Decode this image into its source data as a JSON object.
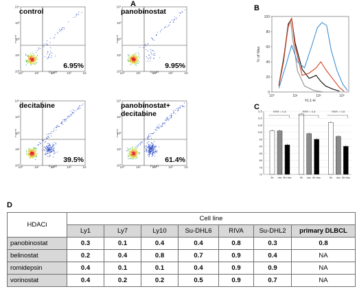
{
  "panels": {
    "a": "A",
    "b": "B",
    "c": "C",
    "d": "D"
  },
  "flow_plots": [
    {
      "condition": "control",
      "percent": "6.95%"
    },
    {
      "condition": "panobinostat",
      "percent": "9.95%"
    },
    {
      "condition": "decitabine",
      "percent": "39.5%"
    },
    {
      "condition": "panobinostat+\ndecitabine",
      "percent": "61.4%"
    }
  ],
  "flow_axis": {
    "x_label": "FL1-H",
    "y_label": "FL3-H",
    "ticks": [
      "10⁰",
      "10¹",
      "10²",
      "10³",
      "10⁴"
    ]
  },
  "colors": {
    "grey_line": "#8c8c8c",
    "black_line": "#000000",
    "red_line": "#d2401f",
    "blue_line": "#3c8fd4",
    "bar_white": "#ffffff",
    "bar_grey": "#8a8a8a",
    "bar_black": "#000000",
    "header_fill": "#d8d8d8"
  },
  "chart_data": [
    {
      "type": "line",
      "panel": "B",
      "xlabel": "FL1-H",
      "ylabel": "% of Max",
      "x_ticks": [
        "10⁰",
        "10¹",
        "10²",
        "10³"
      ],
      "y_ticks": [
        "0",
        "20",
        "40",
        "60",
        "80",
        "100"
      ],
      "ylim": [
        0,
        100
      ],
      "x_log_range": [
        0,
        3.3
      ],
      "series": [
        {
          "color": "#8c8c8c",
          "x": [
            0.3,
            0.5,
            0.7,
            0.8,
            0.9,
            1.1,
            1.4,
            1.8,
            2.2
          ],
          "y": [
            10,
            45,
            85,
            95,
            70,
            28,
            8,
            2,
            0
          ]
        },
        {
          "color": "#000000",
          "x": [
            0.3,
            0.5,
            0.7,
            0.85,
            1.0,
            1.3,
            1.6,
            1.9,
            2.1,
            2.3,
            2.6,
            2.9
          ],
          "y": [
            8,
            42,
            90,
            97,
            65,
            30,
            18,
            22,
            14,
            8,
            4,
            1
          ]
        },
        {
          "color": "#d2401f",
          "x": [
            0.3,
            0.5,
            0.7,
            0.85,
            1.0,
            1.3,
            1.6,
            1.9,
            2.1,
            2.3,
            2.6,
            2.9,
            3.1
          ],
          "y": [
            8,
            40,
            88,
            98,
            60,
            22,
            25,
            32,
            40,
            30,
            18,
            6,
            1
          ]
        },
        {
          "color": "#3c8fd4",
          "x": [
            0.3,
            0.6,
            0.85,
            1.1,
            1.4,
            1.7,
            1.95,
            2.15,
            2.35,
            2.55,
            2.8,
            3.05,
            3.25
          ],
          "y": [
            5,
            35,
            62,
            40,
            32,
            60,
            85,
            92,
            88,
            55,
            28,
            10,
            2
          ]
        }
      ]
    },
    {
      "type": "bar",
      "panel": "C",
      "groups": 3,
      "categories": [
        "8h",
        "dac",
        "8h+dac",
        "8h",
        "dac",
        "8h+dac",
        "8h",
        "dac",
        "8h+dac"
      ],
      "series_colors": [
        "#ffffff",
        "#8a8a8a",
        "#000000"
      ],
      "y_ticks": [
        "70",
        "75",
        "80",
        "85",
        "90",
        "95",
        "100",
        "105",
        "110",
        "115"
      ],
      "ylim": [
        70,
        115
      ],
      "values": [
        101,
        101,
        91,
        113,
        99,
        95,
        107,
        97,
        90
      ],
      "annotations": [
        "RRR = 0.8",
        "RRR = 0.8",
        "RRR = 0.8"
      ]
    }
  ],
  "table": {
    "corner": "HDACi",
    "group_header": "Cell line",
    "columns": [
      "Ly1",
      "Ly7",
      "Ly10",
      "Su-DHL6",
      "RIVA",
      "Su-DHL2",
      "primary DLBCL"
    ],
    "rows": [
      {
        "label": "panobinostat",
        "values": [
          "0.3",
          "0.1",
          "0.4",
          "0.4",
          "0.8",
          "0.3",
          "0.8"
        ]
      },
      {
        "label": "belinostat",
        "values": [
          "0.2",
          "0.4",
          "0.8",
          "0.7",
          "0.9",
          "0.4",
          "NA"
        ]
      },
      {
        "label": "romidepsin",
        "values": [
          "0.4",
          "0.1",
          "0.1",
          "0.4",
          "0.9",
          "0.9",
          "NA"
        ]
      },
      {
        "label": "vorinostat",
        "values": [
          "0.4",
          "0.2",
          "0.2",
          "0.5",
          "0.9",
          "0.7",
          "NA"
        ]
      }
    ]
  }
}
